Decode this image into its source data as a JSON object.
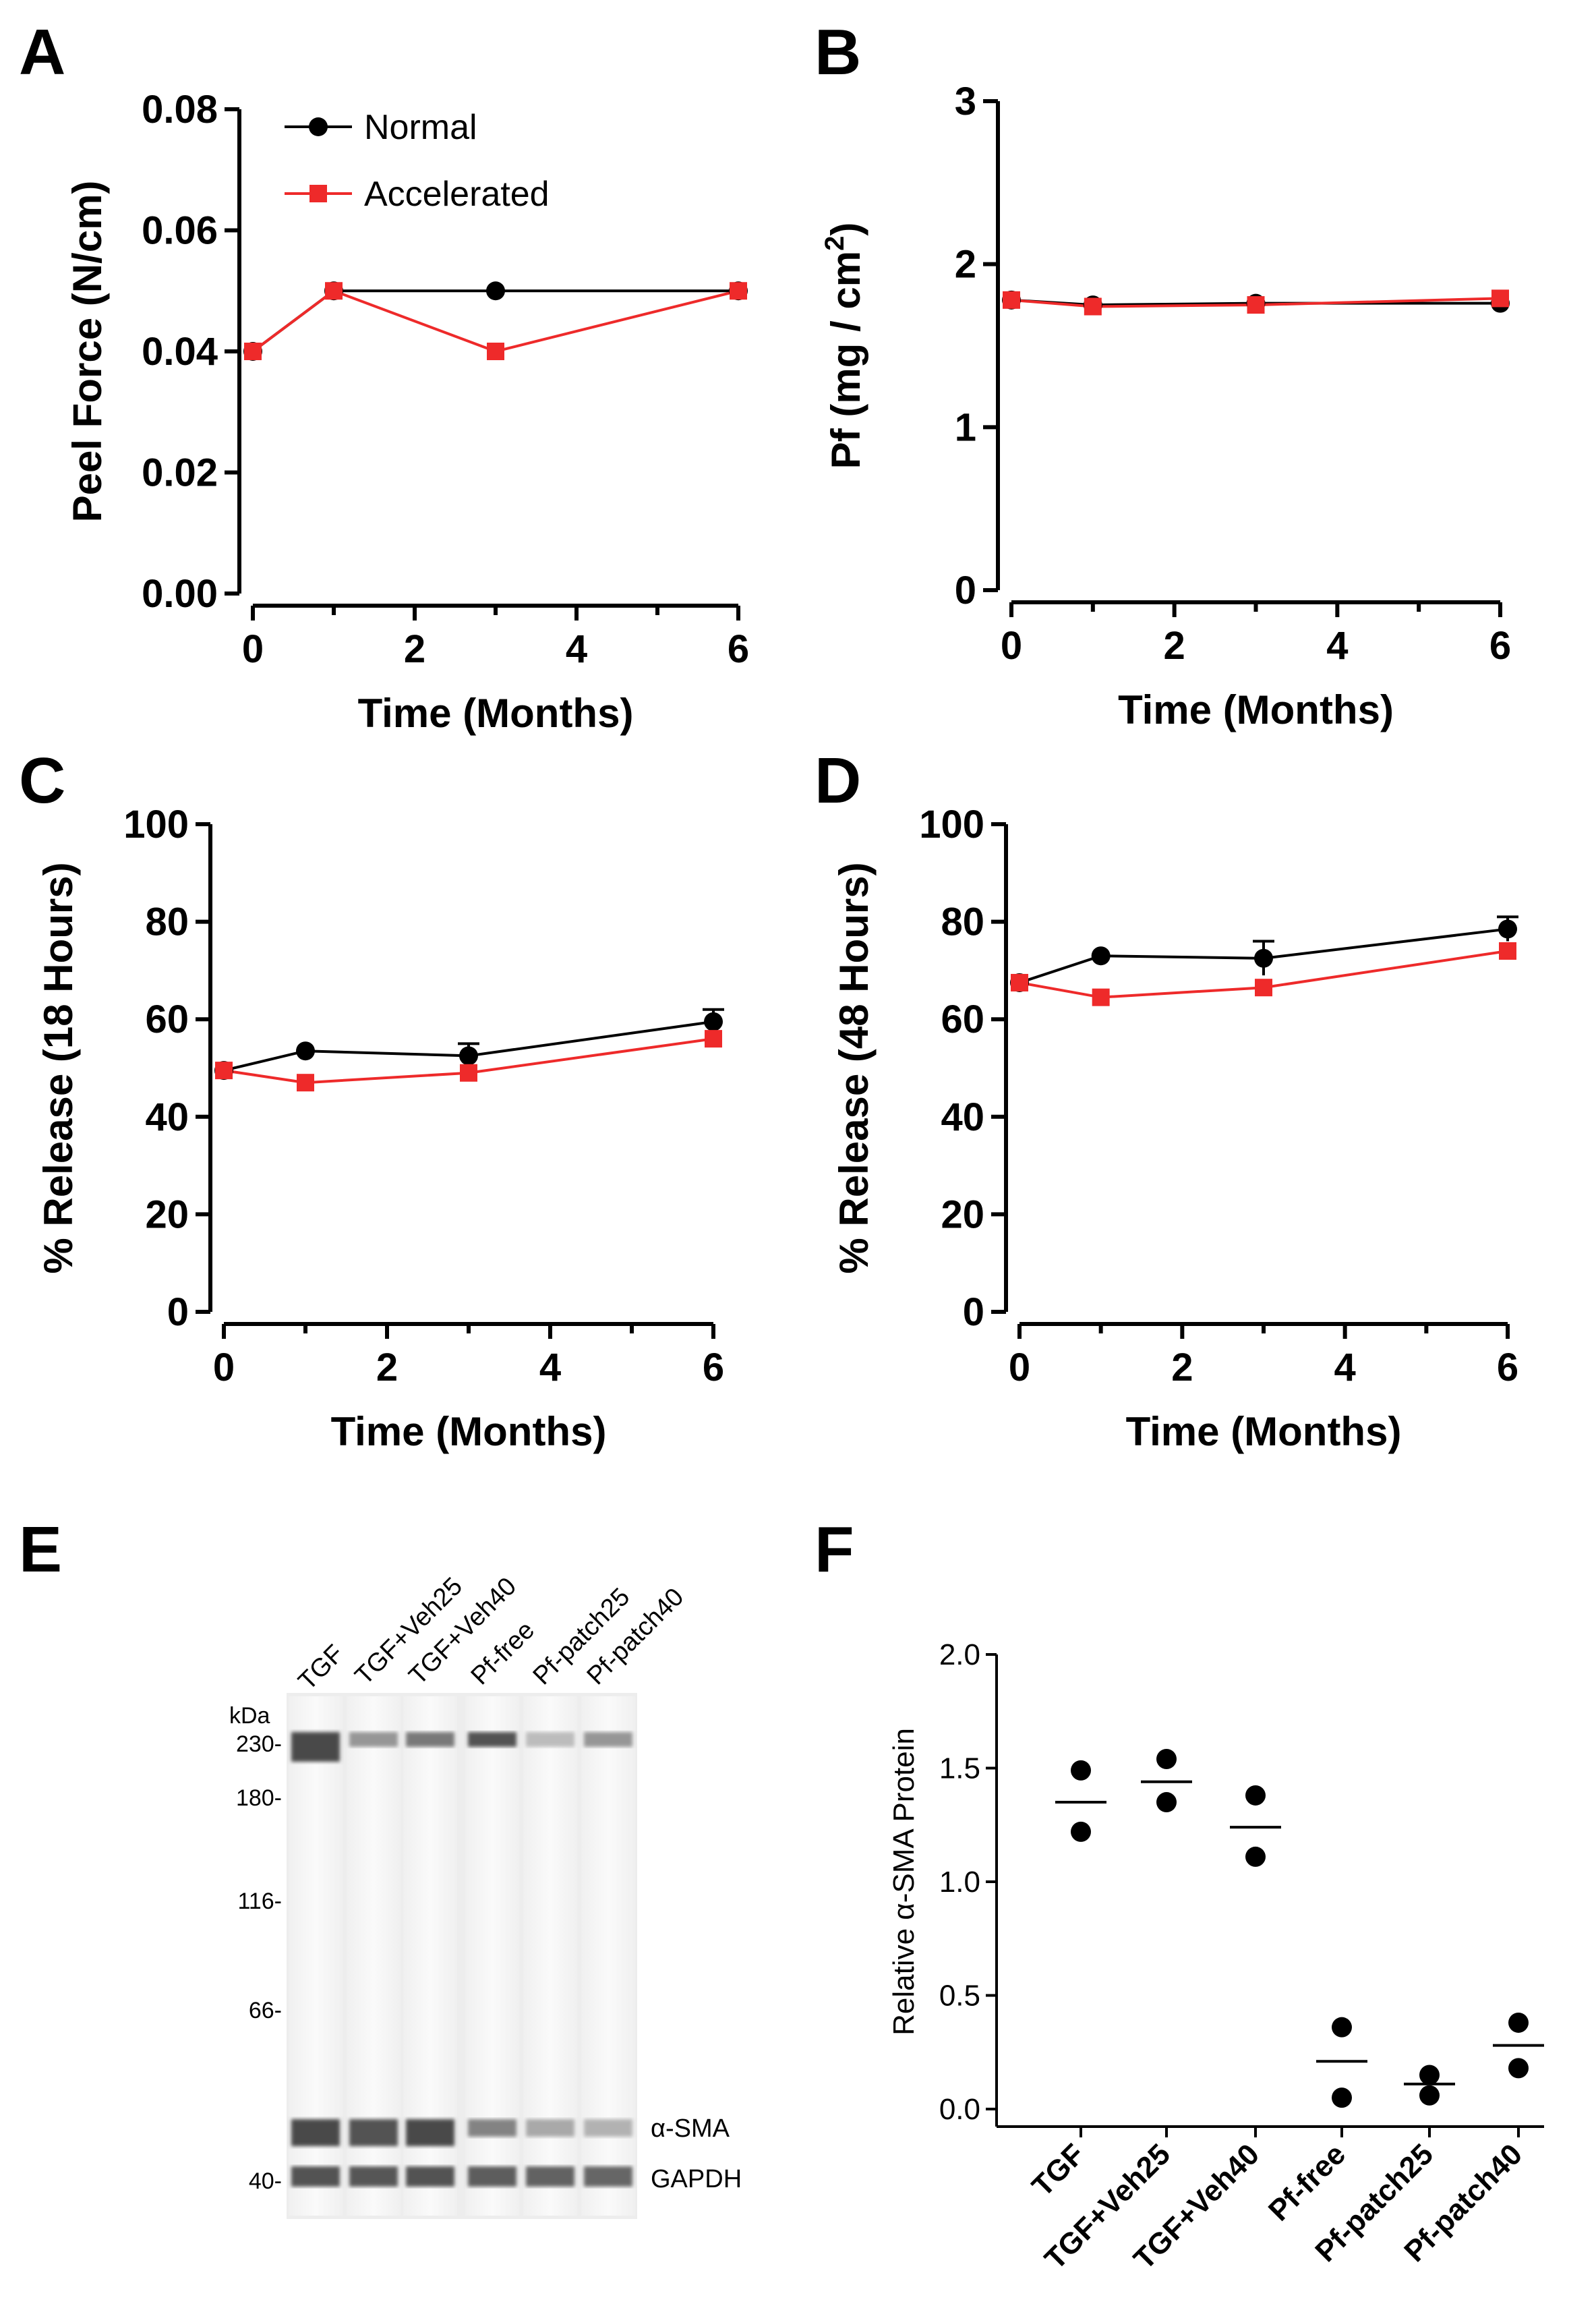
{
  "chart_data": [
    {
      "panel": "A",
      "type": "line",
      "xlabel": "Time (Months)",
      "ylabel": "Peel Force (N/cm)",
      "xlim": [
        0,
        6
      ],
      "ylim": [
        0,
        0.08
      ],
      "xticks": [
        "0",
        "2",
        "4",
        "6"
      ],
      "yticks": [
        "0.00",
        "0.02",
        "0.04",
        "0.06",
        "0.08"
      ],
      "legend": [
        "Normal",
        "Accelerated"
      ],
      "series": [
        {
          "name": "Normal",
          "color": "#000000",
          "marker": "circle",
          "x": [
            0,
            1,
            3,
            6
          ],
          "y": [
            0.04,
            0.05,
            0.05,
            0.05
          ]
        },
        {
          "name": "Accelerated",
          "color": "#ee2a2a",
          "marker": "square",
          "x": [
            0,
            1,
            3,
            6
          ],
          "y": [
            0.04,
            0.05,
            0.04,
            0.05
          ]
        }
      ]
    },
    {
      "panel": "B",
      "type": "line",
      "xlabel": "Time (Months)",
      "ylabel": "Pf  (mg / cm²)",
      "ylabel_parts": [
        "Pf  (mg / cm",
        "2",
        ")"
      ],
      "xlim": [
        0,
        6
      ],
      "ylim": [
        0,
        3
      ],
      "xticks": [
        "0",
        "2",
        "4",
        "6"
      ],
      "yticks": [
        "0",
        "1",
        "2",
        "3"
      ],
      "series": [
        {
          "name": "Normal",
          "color": "#000000",
          "marker": "circle",
          "x": [
            0,
            1,
            3,
            6
          ],
          "y": [
            1.78,
            1.75,
            1.76,
            1.76
          ]
        },
        {
          "name": "Accelerated",
          "color": "#ee2a2a",
          "marker": "square",
          "x": [
            0,
            1,
            3,
            6
          ],
          "y": [
            1.78,
            1.74,
            1.75,
            1.79
          ]
        }
      ]
    },
    {
      "panel": "C",
      "type": "line",
      "xlabel": "Time (Months)",
      "ylabel": "% Release (18 Hours)",
      "xlim": [
        0,
        6
      ],
      "ylim": [
        0,
        100
      ],
      "xticks": [
        "0",
        "2",
        "4",
        "6"
      ],
      "yticks": [
        "0",
        "20",
        "40",
        "60",
        "80",
        "100"
      ],
      "series": [
        {
          "name": "Normal",
          "color": "#000000",
          "marker": "circle",
          "x": [
            0,
            1,
            3,
            6
          ],
          "y": [
            49.5,
            53.5,
            52.5,
            59.5
          ],
          "err": [
            1,
            1,
            2.5,
            2.5
          ]
        },
        {
          "name": "Accelerated",
          "color": "#ee2a2a",
          "marker": "square",
          "x": [
            0,
            1,
            3,
            6
          ],
          "y": [
            49.5,
            47,
            49,
            56
          ],
          "err": [
            1,
            1,
            1,
            1
          ]
        }
      ]
    },
    {
      "panel": "D",
      "type": "line",
      "xlabel": "Time (Months)",
      "ylabel": "% Release (48 Hours)",
      "xlim": [
        0,
        6
      ],
      "ylim": [
        0,
        100
      ],
      "xticks": [
        "0",
        "2",
        "4",
        "6"
      ],
      "yticks": [
        "0",
        "20",
        "40",
        "60",
        "80",
        "100"
      ],
      "series": [
        {
          "name": "Normal",
          "color": "#000000",
          "marker": "circle",
          "x": [
            0,
            1,
            3,
            6
          ],
          "y": [
            67.5,
            73,
            72.5,
            78.5
          ],
          "err": [
            1,
            1,
            3.5,
            2.5
          ]
        },
        {
          "name": "Accelerated",
          "color": "#ee2a2a",
          "marker": "square",
          "x": [
            0,
            1,
            3,
            6
          ],
          "y": [
            67.5,
            64.5,
            66.5,
            74
          ],
          "err": [
            1,
            1,
            1,
            1
          ]
        }
      ]
    },
    {
      "panel": "F",
      "type": "scatter",
      "ylabel": "Relative α-SMA Protein",
      "ylim": [
        0,
        2.0
      ],
      "yticks": [
        "0.0",
        "0.5",
        "1.0",
        "1.5",
        "2.0"
      ],
      "categories": [
        "TGF",
        "TGF+Veh25",
        "TGF+Veh40",
        "Pf-free",
        "Pf-patch25",
        "Pf-patch40"
      ],
      "points": [
        [
          1.49,
          1.22
        ],
        [
          1.54,
          1.35
        ],
        [
          1.38,
          1.11
        ],
        [
          0.36,
          0.05
        ],
        [
          0.15,
          0.06
        ],
        [
          0.38,
          0.18
        ]
      ],
      "means": [
        1.35,
        1.44,
        1.24,
        0.21,
        0.11,
        0.28
      ]
    }
  ],
  "panel_labels": [
    "A",
    "B",
    "C",
    "D",
    "E",
    "F"
  ],
  "blot": {
    "lanes": [
      "TGF",
      "TGF+Veh25",
      "TGF+Veh40",
      "Pf-free",
      "Pf-patch25",
      "Pf-patch40"
    ],
    "kda_label": "kDa",
    "markers": [
      "230-",
      "180-",
      "116-",
      "66-",
      "40-"
    ],
    "bands": [
      "α-SMA",
      "GAPDH"
    ]
  }
}
